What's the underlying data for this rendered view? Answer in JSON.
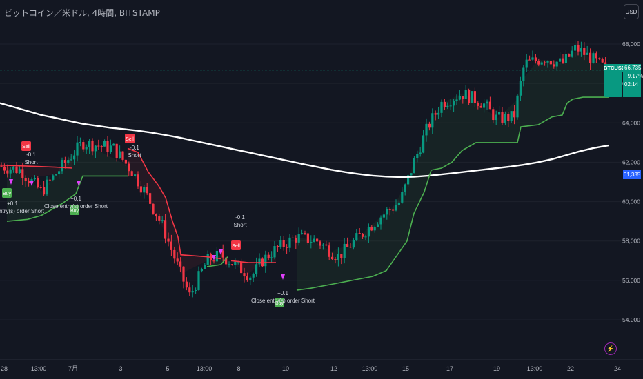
{
  "header": {
    "title": "ビットコイン／米ドル, 4時間, BITSTAMP",
    "currency": "USD"
  },
  "price_scale": {
    "last_price": "66,735",
    "change": "+9.17%",
    "countdown": "02:14",
    "ticker": "BTCUSD",
    "ma_value": "61,335"
  },
  "colors": {
    "up": "#089981",
    "down": "#f23645",
    "ma": "#ffffff",
    "trail_up": "#4caf50",
    "trail_down": "#f23645",
    "bg": "#131722"
  },
  "chart_data": {
    "type": "line",
    "ylim": [
      53000,
      69500
    ],
    "yticks": [
      "68,000",
      "66,000",
      "64,000",
      "62,000",
      "60,000",
      "58,000",
      "56,000",
      "54,000"
    ],
    "xticks": [
      "28",
      "13:00",
      "7月",
      "3",
      "5",
      "13:00",
      "8",
      "10",
      "12",
      "13:00",
      "15",
      "17",
      "19",
      "13:00",
      "22",
      "24"
    ],
    "series": [
      {
        "name": "",
        "values": [
          [
            0,
            65000
          ],
          [
            20,
            64800
          ],
          [
            40,
            64600
          ],
          [
            60,
            64400
          ],
          [
            80,
            64250
          ],
          [
            100,
            64100
          ],
          [
            120,
            63950
          ],
          [
            140,
            63850
          ],
          [
            160,
            63750
          ],
          [
            180,
            63680
          ],
          [
            200,
            63600
          ],
          [
            220,
            63500
          ],
          [
            240,
            63380
          ],
          [
            260,
            63250
          ],
          [
            280,
            63100
          ],
          [
            300,
            62950
          ],
          [
            320,
            62800
          ],
          [
            340,
            62650
          ],
          [
            360,
            62500
          ],
          [
            380,
            62350
          ],
          [
            400,
            62200
          ],
          [
            420,
            62050
          ],
          [
            440,
            61900
          ],
          [
            460,
            61760
          ],
          [
            480,
            61620
          ],
          [
            500,
            61500
          ],
          [
            520,
            61400
          ],
          [
            540,
            61320
          ],
          [
            560,
            61270
          ],
          [
            580,
            61250
          ],
          [
            600,
            61260
          ],
          [
            620,
            61310
          ],
          [
            640,
            61380
          ],
          [
            660,
            61460
          ],
          [
            680,
            61540
          ],
          [
            700,
            61620
          ],
          [
            720,
            61700
          ],
          [
            740,
            61780
          ],
          [
            760,
            61880
          ],
          [
            780,
            62000
          ],
          [
            800,
            62150
          ],
          [
            820,
            62350
          ],
          [
            840,
            62550
          ],
          [
            860,
            62720
          ],
          [
            882,
            62850
          ]
        ]
      }
    ],
    "ohlc": [
      [
        58,
        60000,
        61500
      ],
      [
        60,
        57800,
        59500
      ],
      [
        63,
        58500,
        60800
      ],
      [
        65,
        56800,
        58800
      ],
      [
        66,
        57000,
        58000
      ],
      [
        70,
        57500,
        58200
      ],
      [
        72,
        55600,
        57800
      ],
      [
        74,
        56400,
        59200
      ],
      [
        77,
        57500,
        60000
      ],
      [
        79,
        58500,
        60500
      ],
      [
        80,
        59000,
        60800
      ],
      [
        82,
        58600,
        61200
      ],
      [
        84,
        59400,
        61600
      ],
      [
        86,
        60600,
        62000
      ],
      [
        90,
        60800,
        61700
      ],
      [
        92,
        59800,
        61200
      ],
      [
        94,
        58600,
        60600
      ],
      [
        96,
        57600,
        59200
      ],
      [
        98,
        56400,
        58000
      ],
      [
        102,
        55000,
        57000
      ],
      [
        103,
        55600,
        57800
      ],
      [
        105,
        55000,
        57200
      ],
      [
        109,
        54400,
        56200
      ],
      [
        111,
        53800,
        55500
      ],
      [
        113,
        55200,
        57300
      ],
      [
        117,
        56800,
        58200
      ],
      [
        122,
        57000,
        58000
      ],
      [
        126,
        56800,
        58400
      ],
      [
        128,
        56800,
        58100
      ],
      [
        130,
        56800,
        58300
      ],
      [
        132,
        56600,
        57800
      ],
      [
        134,
        56400,
        58200
      ],
      [
        136,
        56600,
        57600
      ],
      [
        138,
        55700,
        57600
      ],
      [
        140,
        57000,
        58000
      ],
      [
        142,
        57200,
        58700
      ],
      [
        144,
        56100,
        59500
      ],
      [
        146,
        54800,
        56800
      ],
      [
        148,
        54500,
        56200
      ],
      [
        150,
        55600,
        57200
      ],
      [
        152,
        56000,
        57600
      ],
      [
        154,
        56500,
        57500
      ],
      [
        156,
        56700,
        58400
      ],
      [
        158,
        57500,
        59200
      ],
      [
        159,
        59000,
        59400
      ]
    ],
    "trail_values": [
      [
        0,
        61900
      ],
      [
        80,
        61900
      ],
      [
        80,
        61700
      ],
      [
        103,
        61700
      ],
      [
        103,
        61700
      ],
      [
        112,
        61400
      ],
      [
        116,
        61000
      ],
      [
        124,
        59800
      ],
      [
        128,
        59400
      ],
      [
        136,
        57500
      ],
      [
        140,
        57300
      ],
      [
        150,
        57300
      ],
      [
        152,
        57100
      ],
      [
        153,
        56300
      ],
      [
        156,
        56100
      ],
      [
        168,
        55700
      ],
      [
        176,
        56000
      ],
      [
        184,
        56200
      ],
      [
        194,
        56700
      ],
      [
        200,
        56900
      ],
      [
        205,
        57000
      ],
      [
        220,
        57500
      ],
      [
        230,
        57800
      ],
      [
        238,
        58200
      ],
      [
        246,
        59200
      ],
      [
        252,
        59400
      ],
      [
        258,
        59400
      ],
      [
        260,
        59800
      ],
      [
        265,
        59800
      ],
      [
        266,
        61300
      ],
      [
        272,
        61500
      ],
      [
        296,
        62400
      ],
      [
        304,
        62800
      ],
      [
        320,
        63200
      ],
      [
        328,
        63800
      ],
      [
        332,
        64300
      ],
      [
        336,
        64400
      ],
      [
        348,
        64900
      ],
      [
        352,
        65000
      ],
      [
        360,
        65200
      ],
      [
        380,
        65400
      ],
      [
        384,
        65500
      ],
      [
        392,
        65600
      ],
      [
        400,
        65800
      ],
      [
        406,
        65900
      ],
      [
        412,
        66100
      ],
      [
        420,
        66300
      ],
      [
        430,
        66500
      ],
      [
        438,
        66600
      ],
      [
        452,
        66700
      ]
    ],
    "annotations": [
      {
        "label": "Sell",
        "text": "-0.1",
        "sub": "Short"
      },
      {
        "label": "Buy",
        "text": "+0.1",
        "sub": "Close entry(s) order Short"
      },
      {
        "label": "Sell",
        "text": "-0.1",
        "sub": "Short"
      },
      {
        "label": "Buy",
        "text": "+0.1",
        "sub": "Close entry(s) order Short"
      },
      {
        "label": "Sell",
        "text": "-0.1",
        "sub": "Short"
      },
      {
        "label": "Buy",
        "text": "+0.1",
        "sub": "Close entry(s) order Short"
      }
    ]
  }
}
